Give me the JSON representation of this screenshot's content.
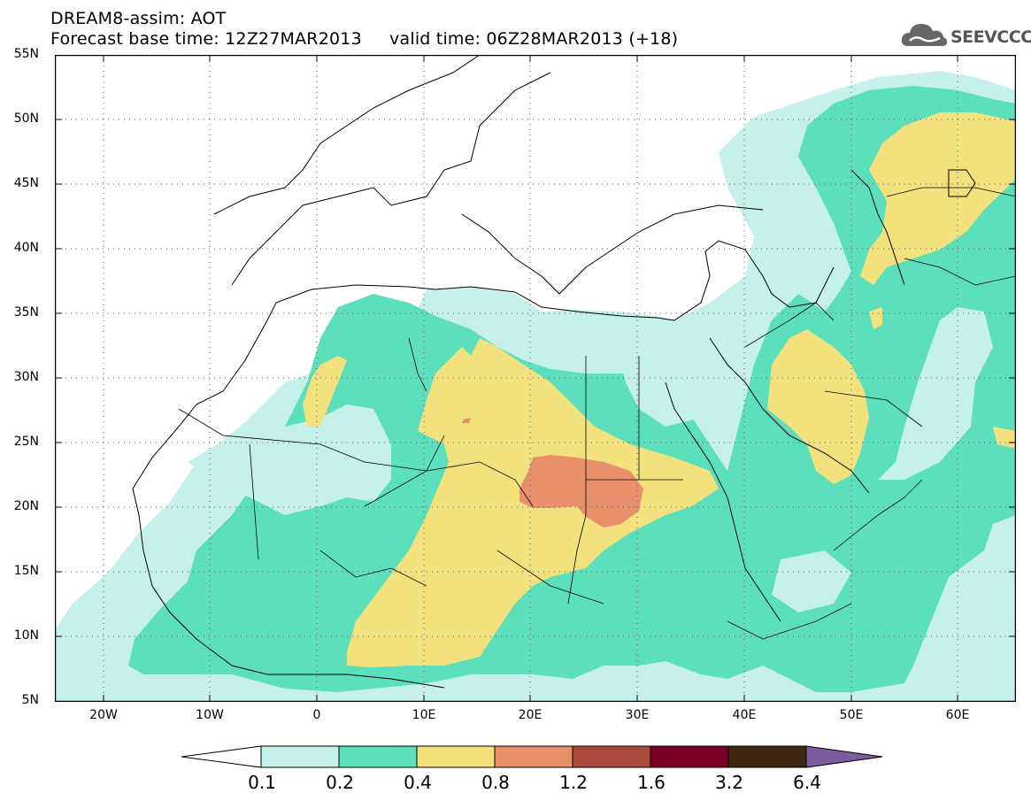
{
  "header": {
    "line1": "DREAM8-assim: AOT",
    "line2": "Forecast base time: 12Z27MAR2013     valid time: 06Z28MAR2013 (+18)"
  },
  "logo": {
    "text": "SEEVCCC",
    "icon": "cloud-icon",
    "color": "#555555"
  },
  "map": {
    "region": "North Africa, Europe and Middle East",
    "lat_labels": [
      "55N",
      "50N",
      "45N",
      "40N",
      "35N",
      "30N",
      "25N",
      "20N",
      "15N",
      "10N",
      "5N"
    ],
    "lon_labels": [
      "20W",
      "10W",
      "0",
      "10E",
      "20E",
      "30E",
      "40E",
      "50E",
      "60E"
    ],
    "lat_range": [
      5,
      55
    ],
    "lon_range": [
      -25,
      65
    ],
    "grid": "dotted"
  },
  "legend": {
    "labels": [
      "0.1",
      "0.2",
      "0.4",
      "0.8",
      "1.2",
      "1.6",
      "3.2",
      "6.4"
    ],
    "colors": [
      "#c6f0ea",
      "#5ce0bc",
      "#f2e17c",
      "#e88f6c",
      "#aa4b3e",
      "#7b0026",
      "#3e2812",
      "#7d5c9e"
    ]
  }
}
